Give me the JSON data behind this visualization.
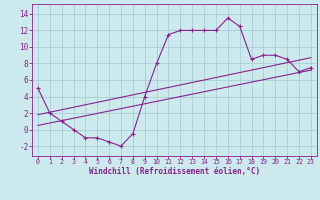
{
  "xlabel": "Windchill (Refroidissement éolien,°C)",
  "bg_color": "#cce9ee",
  "grid_color": "#aacdd6",
  "line_color": "#882288",
  "spine_color": "#882288",
  "xlim": [
    -0.5,
    23.5
  ],
  "ylim": [
    -3.2,
    15.2
  ],
  "yticks": [
    -2,
    0,
    2,
    4,
    6,
    8,
    10,
    12,
    14
  ],
  "xticks": [
    0,
    1,
    2,
    3,
    4,
    5,
    6,
    7,
    8,
    9,
    10,
    11,
    12,
    13,
    14,
    15,
    16,
    17,
    18,
    19,
    20,
    21,
    22,
    23
  ],
  "curve_x": [
    0,
    1,
    2,
    3,
    4,
    5,
    6,
    7,
    8,
    9,
    10,
    11,
    12,
    13,
    14,
    15,
    16,
    17,
    18,
    19,
    20,
    21,
    22,
    23
  ],
  "curve_y": [
    5,
    2,
    1,
    0,
    -1,
    -1,
    -1.5,
    -2,
    -0.5,
    4,
    8,
    11.5,
    12,
    12,
    12,
    12,
    13.5,
    12.5,
    8.5,
    9,
    9,
    8.5,
    7,
    7.5
  ],
  "line1_x": [
    0,
    23
  ],
  "line1_y": [
    1.8,
    8.7
  ],
  "line2_x": [
    0,
    23
  ],
  "line2_y": [
    0.5,
    7.2
  ],
  "xlabel_fontsize": 5.5,
  "tick_fontsize": 4.8,
  "tick_fontsize_y": 5.5
}
